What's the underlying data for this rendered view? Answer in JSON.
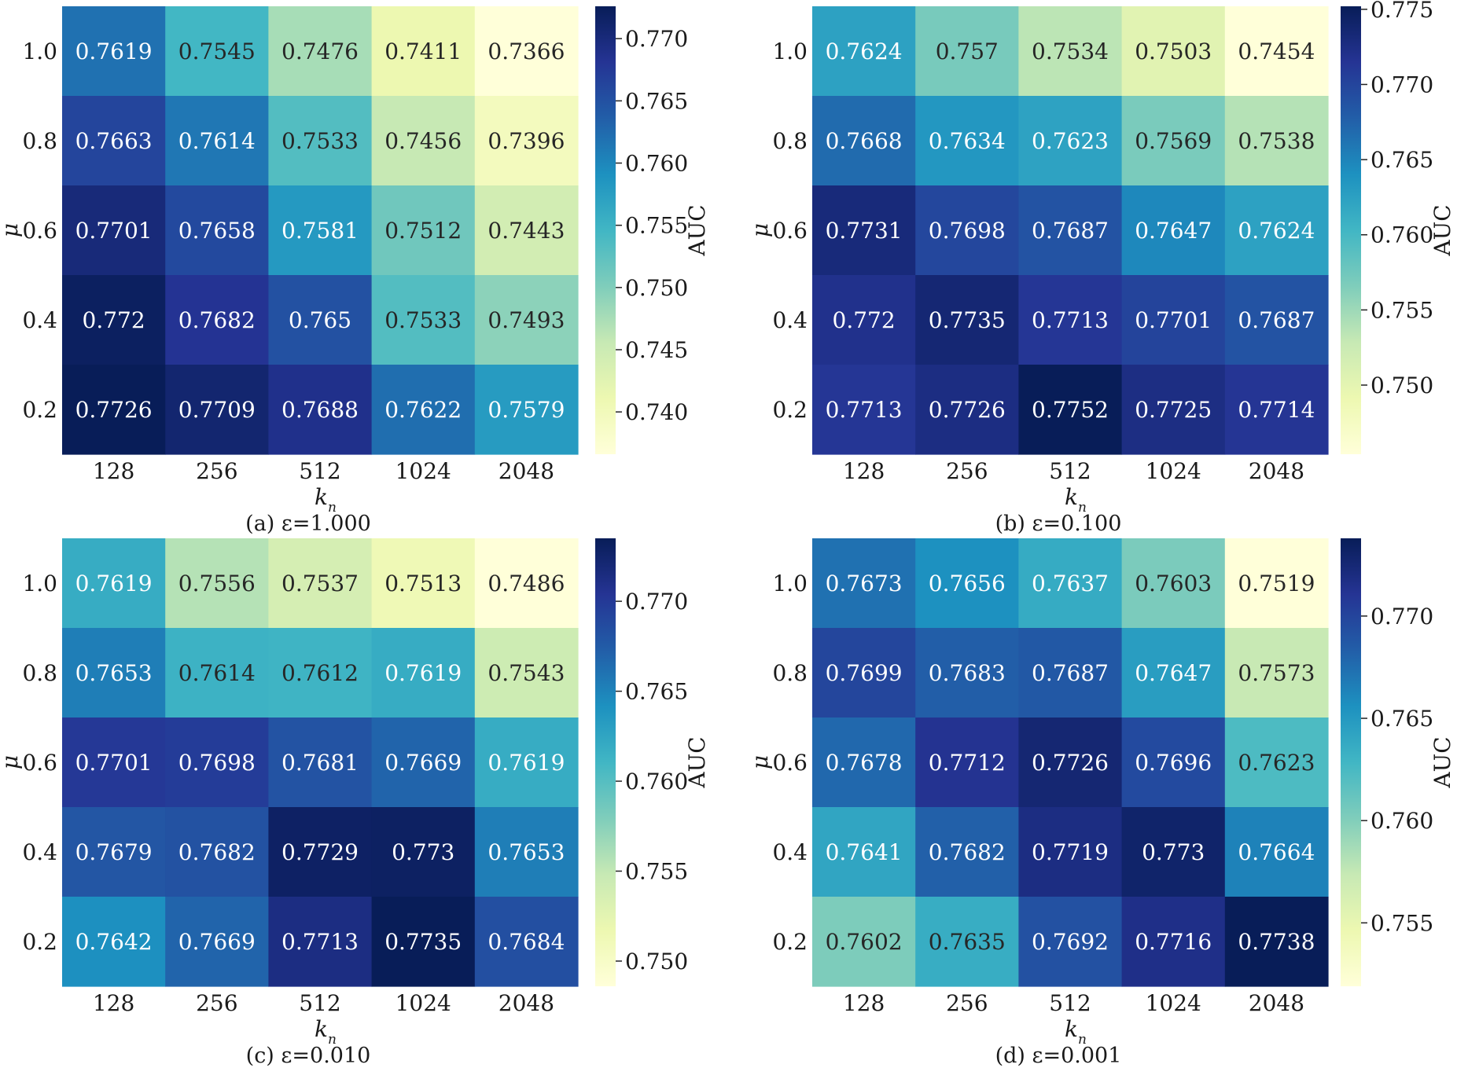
{
  "colormap": {
    "name": "YlGnBu",
    "stops": [
      "#ffffd9",
      "#edf8b1",
      "#c7e9b4",
      "#7fcdbb",
      "#41b6c4",
      "#1d91c0",
      "#225ea8",
      "#253494",
      "#081d58"
    ]
  },
  "chart_data": [
    {
      "type": "heatmap",
      "caption": "(a) ε=1.000",
      "xlabel": "k_n",
      "ylabel": "μ",
      "colorbar_label": "AUC",
      "x_categories": [
        "128",
        "256",
        "512",
        "1024",
        "2048"
      ],
      "y_categories": [
        "1.0",
        "0.8",
        "0.6",
        "0.4",
        "0.2"
      ],
      "values": [
        [
          0.7619,
          0.7545,
          0.7476,
          0.7411,
          0.7366
        ],
        [
          0.7663,
          0.7614,
          0.7533,
          0.7456,
          0.7396
        ],
        [
          0.7701,
          0.7658,
          0.7581,
          0.7512,
          0.7443
        ],
        [
          0.772,
          0.7682,
          0.765,
          0.7533,
          0.7493
        ],
        [
          0.7726,
          0.7709,
          0.7688,
          0.7622,
          0.7579
        ]
      ],
      "colorbar_range": [
        0.7366,
        0.7726
      ],
      "colorbar_ticks": [
        "0.740",
        "0.745",
        "0.750",
        "0.755",
        "0.760",
        "0.765",
        "0.770"
      ]
    },
    {
      "type": "heatmap",
      "caption": "(b) ε=0.100",
      "xlabel": "k_n",
      "ylabel": "μ",
      "colorbar_label": "AUC",
      "x_categories": [
        "128",
        "256",
        "512",
        "1024",
        "2048"
      ],
      "y_categories": [
        "1.0",
        "0.8",
        "0.6",
        "0.4",
        "0.2"
      ],
      "values": [
        [
          0.7624,
          0.757,
          0.7534,
          0.7503,
          0.7454
        ],
        [
          0.7668,
          0.7634,
          0.7623,
          0.7569,
          0.7538
        ],
        [
          0.7731,
          0.7698,
          0.7687,
          0.7647,
          0.7624
        ],
        [
          0.772,
          0.7735,
          0.7713,
          0.7701,
          0.7687
        ],
        [
          0.7713,
          0.7726,
          0.7752,
          0.7725,
          0.7714
        ]
      ],
      "colorbar_range": [
        0.7454,
        0.7752
      ],
      "colorbar_ticks": [
        "0.750",
        "0.755",
        "0.760",
        "0.765",
        "0.770",
        "0.775"
      ]
    },
    {
      "type": "heatmap",
      "caption": "(c) ε=0.010",
      "xlabel": "k_n",
      "ylabel": "μ",
      "colorbar_label": "AUC",
      "x_categories": [
        "128",
        "256",
        "512",
        "1024",
        "2048"
      ],
      "y_categories": [
        "1.0",
        "0.8",
        "0.6",
        "0.4",
        "0.2"
      ],
      "values": [
        [
          0.7619,
          0.7556,
          0.7537,
          0.7513,
          0.7486
        ],
        [
          0.7653,
          0.7614,
          0.7612,
          0.7619,
          0.7543
        ],
        [
          0.7701,
          0.7698,
          0.7681,
          0.7669,
          0.7619
        ],
        [
          0.7679,
          0.7682,
          0.7729,
          0.773,
          0.7653
        ],
        [
          0.7642,
          0.7669,
          0.7713,
          0.7735,
          0.7684
        ]
      ],
      "colorbar_range": [
        0.7486,
        0.7735
      ],
      "colorbar_ticks": [
        "0.750",
        "0.755",
        "0.760",
        "0.765",
        "0.770"
      ]
    },
    {
      "type": "heatmap",
      "caption": "(d) ε=0.001",
      "xlabel": "k_n",
      "ylabel": "μ",
      "colorbar_label": "AUC",
      "x_categories": [
        "128",
        "256",
        "512",
        "1024",
        "2048"
      ],
      "y_categories": [
        "1.0",
        "0.8",
        "0.6",
        "0.4",
        "0.2"
      ],
      "values": [
        [
          0.7673,
          0.7656,
          0.7637,
          0.7603,
          0.7519
        ],
        [
          0.7699,
          0.7683,
          0.7687,
          0.7647,
          0.7573
        ],
        [
          0.7678,
          0.7712,
          0.7726,
          0.7696,
          0.7623
        ],
        [
          0.7641,
          0.7682,
          0.7719,
          0.773,
          0.7664
        ],
        [
          0.7602,
          0.7635,
          0.7692,
          0.7716,
          0.7738
        ]
      ],
      "colorbar_range": [
        0.7519,
        0.7738
      ],
      "colorbar_ticks": [
        "0.755",
        "0.760",
        "0.765",
        "0.770"
      ]
    }
  ]
}
